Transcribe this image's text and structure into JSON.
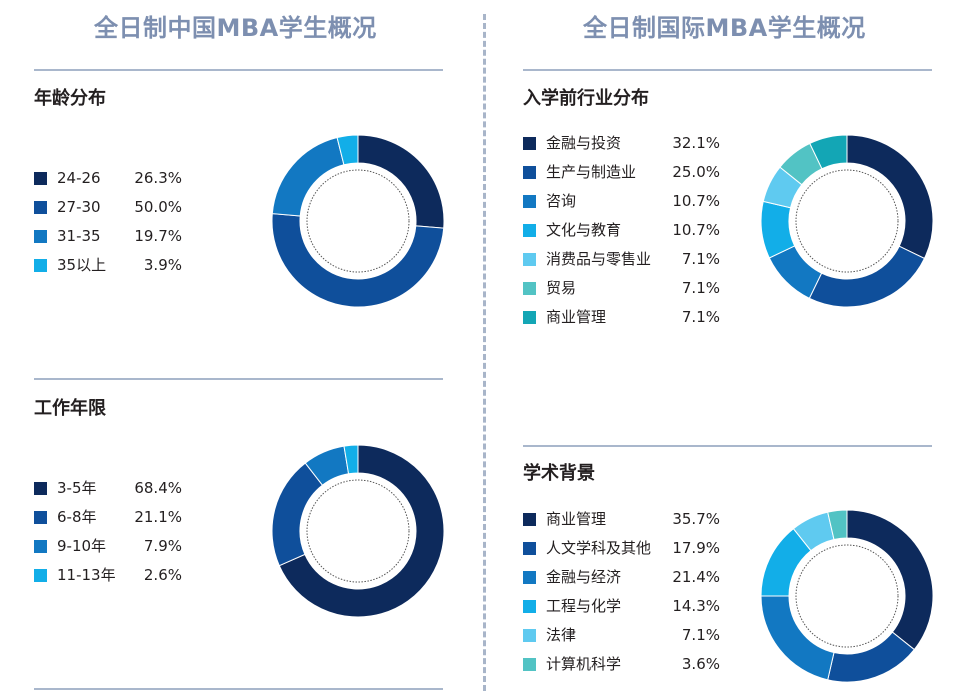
{
  "left_title": "全日制中国MBA学生概况",
  "right_title": "全日制国际MBA学生概况",
  "colors": {
    "navy": "#0d2a5c",
    "blue": "#0f4f9b",
    "mid_blue": "#1278c2",
    "cyan": "#12aee8",
    "light_cyan": "#5fcaf0",
    "teal_light": "#52c3c4",
    "teal": "#13a6b5",
    "title": "#7d8fb0",
    "rule": "#a9b7cc"
  },
  "chart_data": [
    {
      "type": "pie",
      "title": "年龄分布",
      "categories": [
        "24-26",
        "27-30",
        "31-35",
        "35以上"
      ],
      "labels": [
        "26.3%",
        "50.0%",
        "19.7%",
        "3.9%"
      ],
      "values": [
        26.3,
        50.0,
        19.7,
        3.9
      ],
      "colors": [
        "#0d2a5c",
        "#0f4f9b",
        "#1278c2",
        "#12aee8"
      ]
    },
    {
      "type": "pie",
      "title": "工作年限",
      "categories": [
        "3-5年",
        "6-8年",
        "9-10年",
        "11-13年"
      ],
      "labels": [
        "68.4%",
        "21.1%",
        "7.9%",
        "2.6%"
      ],
      "values": [
        68.4,
        21.1,
        7.9,
        2.6
      ],
      "colors": [
        "#0d2a5c",
        "#0f4f9b",
        "#1278c2",
        "#12aee8"
      ]
    },
    {
      "type": "pie",
      "title": "入学前行业分布",
      "categories": [
        "金融与投资",
        "生产与制造业",
        "咨询",
        "文化与教育",
        "消费品与零售业",
        "贸易",
        "商业管理"
      ],
      "labels": [
        "32.1%",
        "25.0%",
        "10.7%",
        "10.7%",
        "7.1%",
        "7.1%",
        "7.1%"
      ],
      "values": [
        32.1,
        25.0,
        10.7,
        10.7,
        7.1,
        7.1,
        7.1
      ],
      "colors": [
        "#0d2a5c",
        "#0f4f9b",
        "#1278c2",
        "#12aee8",
        "#5fcaf0",
        "#52c3c4",
        "#13a6b5"
      ]
    },
    {
      "type": "pie",
      "title": "学术背景",
      "categories": [
        "商业管理",
        "人文学科及其他",
        "金融与经济",
        "工程与化学",
        "法律",
        "计算机科学"
      ],
      "labels": [
        "35.7%",
        "17.9%",
        "21.4%",
        "14.3%",
        "7.1%",
        "3.6%"
      ],
      "values": [
        35.7,
        17.9,
        21.4,
        14.3,
        7.1,
        3.6
      ],
      "colors": [
        "#0d2a5c",
        "#0f4f9b",
        "#1278c2",
        "#12aee8",
        "#5fcaf0",
        "#52c3c4"
      ]
    }
  ]
}
